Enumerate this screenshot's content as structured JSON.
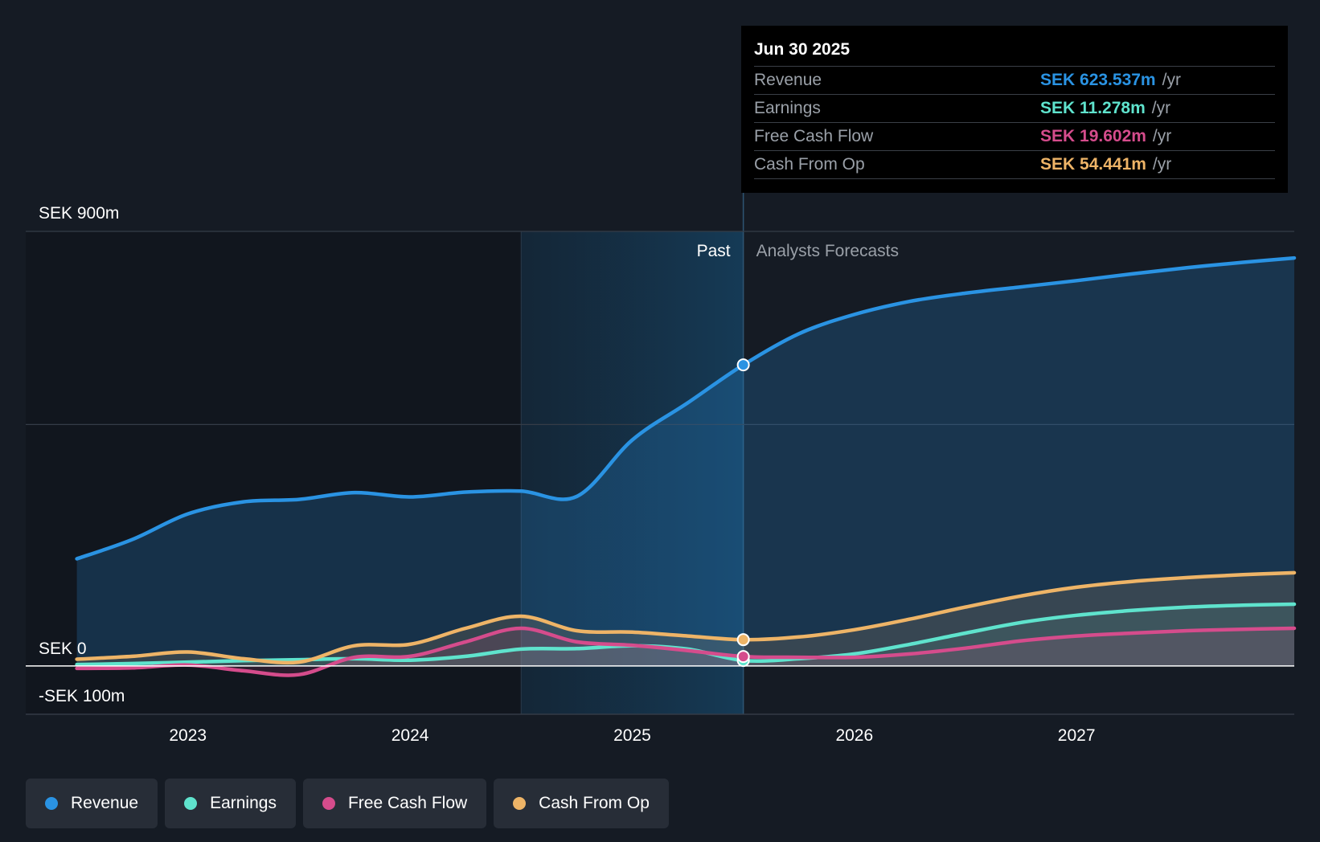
{
  "chart_data": {
    "type": "area",
    "currency": "SEK",
    "y_axis": {
      "min": -100,
      "max": 900,
      "unit": "m",
      "labels": [
        {
          "value": 900,
          "text": "SEK 900m"
        },
        {
          "value": 0,
          "text": "SEK 0"
        },
        {
          "value": -100,
          "text": "-SEK 100m"
        }
      ],
      "gridlines": [
        900,
        500,
        0,
        -100
      ]
    },
    "x_axis": {
      "min": 2022.27,
      "max": 2027.98,
      "ticks": [
        {
          "value": 2023,
          "text": "2023"
        },
        {
          "value": 2024,
          "text": "2024"
        },
        {
          "value": 2025,
          "text": "2025"
        },
        {
          "value": 2026,
          "text": "2026"
        },
        {
          "value": 2027,
          "text": "2027"
        }
      ]
    },
    "past_start": 2024.5,
    "forecast_start": 2025.5,
    "past_label": "Past",
    "forecast_label": "Analysts Forecasts",
    "series": [
      {
        "name": "Revenue",
        "color": "#2a93e3",
        "points": [
          [
            2022.5,
            222
          ],
          [
            2022.75,
            262
          ],
          [
            2023.0,
            315
          ],
          [
            2023.25,
            340
          ],
          [
            2023.5,
            345
          ],
          [
            2023.75,
            359
          ],
          [
            2024.0,
            350
          ],
          [
            2024.25,
            360
          ],
          [
            2024.5,
            362
          ],
          [
            2024.75,
            351
          ],
          [
            2025.0,
            468
          ],
          [
            2025.25,
            545
          ],
          [
            2025.5,
            623.537
          ],
          [
            2025.75,
            688
          ],
          [
            2026.0,
            728
          ],
          [
            2026.25,
            755
          ],
          [
            2026.5,
            772
          ],
          [
            2026.75,
            785
          ],
          [
            2027.0,
            798
          ],
          [
            2027.25,
            812
          ],
          [
            2027.5,
            825
          ],
          [
            2027.75,
            836
          ],
          [
            2027.98,
            845
          ]
        ]
      },
      {
        "name": "Earnings",
        "color": "#5fe3cd",
        "points": [
          [
            2022.5,
            3
          ],
          [
            2022.75,
            5
          ],
          [
            2023.0,
            8
          ],
          [
            2023.25,
            11
          ],
          [
            2023.5,
            13
          ],
          [
            2023.75,
            15
          ],
          [
            2024.0,
            12
          ],
          [
            2024.25,
            20
          ],
          [
            2024.5,
            35
          ],
          [
            2024.75,
            36
          ],
          [
            2025.0,
            42
          ],
          [
            2025.25,
            35
          ],
          [
            2025.5,
            11.278
          ],
          [
            2025.75,
            15
          ],
          [
            2026.0,
            25
          ],
          [
            2026.25,
            45
          ],
          [
            2026.5,
            68
          ],
          [
            2026.75,
            90
          ],
          [
            2027.0,
            105
          ],
          [
            2027.25,
            115
          ],
          [
            2027.5,
            122
          ],
          [
            2027.75,
            126
          ],
          [
            2027.98,
            128
          ]
        ]
      },
      {
        "name": "Free Cash Flow",
        "color": "#d54c8c",
        "points": [
          [
            2022.5,
            -5
          ],
          [
            2022.75,
            -4
          ],
          [
            2023.0,
            2
          ],
          [
            2023.25,
            -10
          ],
          [
            2023.5,
            -18
          ],
          [
            2023.75,
            18
          ],
          [
            2024.0,
            20
          ],
          [
            2024.25,
            50
          ],
          [
            2024.5,
            78
          ],
          [
            2024.75,
            50
          ],
          [
            2025.0,
            43
          ],
          [
            2025.25,
            32
          ],
          [
            2025.5,
            19.602
          ],
          [
            2025.75,
            18
          ],
          [
            2026.0,
            18
          ],
          [
            2026.25,
            25
          ],
          [
            2026.5,
            37
          ],
          [
            2026.75,
            52
          ],
          [
            2027.0,
            62
          ],
          [
            2027.25,
            68
          ],
          [
            2027.5,
            73
          ],
          [
            2027.75,
            76
          ],
          [
            2027.98,
            78
          ]
        ]
      },
      {
        "name": "Cash From Op",
        "color": "#eeb467",
        "points": [
          [
            2022.5,
            14
          ],
          [
            2022.75,
            20
          ],
          [
            2023.0,
            29
          ],
          [
            2023.25,
            15
          ],
          [
            2023.5,
            8
          ],
          [
            2023.75,
            42
          ],
          [
            2024.0,
            45
          ],
          [
            2024.25,
            78
          ],
          [
            2024.5,
            103
          ],
          [
            2024.75,
            73
          ],
          [
            2025.0,
            70
          ],
          [
            2025.25,
            62
          ],
          [
            2025.5,
            54.441
          ],
          [
            2025.75,
            60
          ],
          [
            2026.0,
            75
          ],
          [
            2026.25,
            97
          ],
          [
            2026.5,
            122
          ],
          [
            2026.75,
            145
          ],
          [
            2027.0,
            163
          ],
          [
            2027.25,
            175
          ],
          [
            2027.5,
            183
          ],
          [
            2027.75,
            189
          ],
          [
            2027.98,
            193
          ]
        ]
      }
    ]
  },
  "tooltip": {
    "date": "Jun 30 2025",
    "rows": [
      {
        "label": "Revenue",
        "value": "SEK 623.537m",
        "unit": "/yr",
        "color": "#2a93e3"
      },
      {
        "label": "Earnings",
        "value": "SEK 11.278m",
        "unit": "/yr",
        "color": "#5fe3cd"
      },
      {
        "label": "Free Cash Flow",
        "value": "SEK 19.602m",
        "unit": "/yr",
        "color": "#d54c8c"
      },
      {
        "label": "Cash From Op",
        "value": "SEK 54.441m",
        "unit": "/yr",
        "color": "#eeb467"
      }
    ]
  },
  "legend": [
    {
      "label": "Revenue",
      "color": "#2a93e3"
    },
    {
      "label": "Earnings",
      "color": "#5fe3cd"
    },
    {
      "label": "Free Cash Flow",
      "color": "#d54c8c"
    },
    {
      "label": "Cash From Op",
      "color": "#eeb467"
    }
  ]
}
